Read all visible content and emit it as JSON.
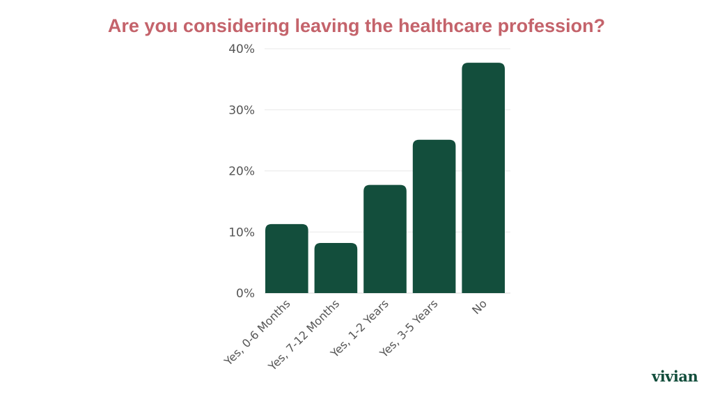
{
  "chart_data": {
    "type": "bar",
    "title": "Are you considering leaving the healthcare profession?",
    "categories": [
      "Yes, 0-6 Months",
      "Yes, 7-12 Months",
      "Yes, 1-2 Years",
      "Yes, 3-5 Years",
      "No"
    ],
    "values": [
      11.3,
      8.2,
      17.7,
      25.1,
      37.7
    ],
    "yticks": [
      "0%",
      "10%",
      "20%",
      "30%",
      "40%"
    ],
    "ylim": [
      0,
      40
    ],
    "xlabel": "",
    "ylabel": "",
    "grid": true,
    "bar_color": "#134e3c",
    "title_color": "#c4636b"
  },
  "brand": {
    "logo_text": "vivian"
  }
}
